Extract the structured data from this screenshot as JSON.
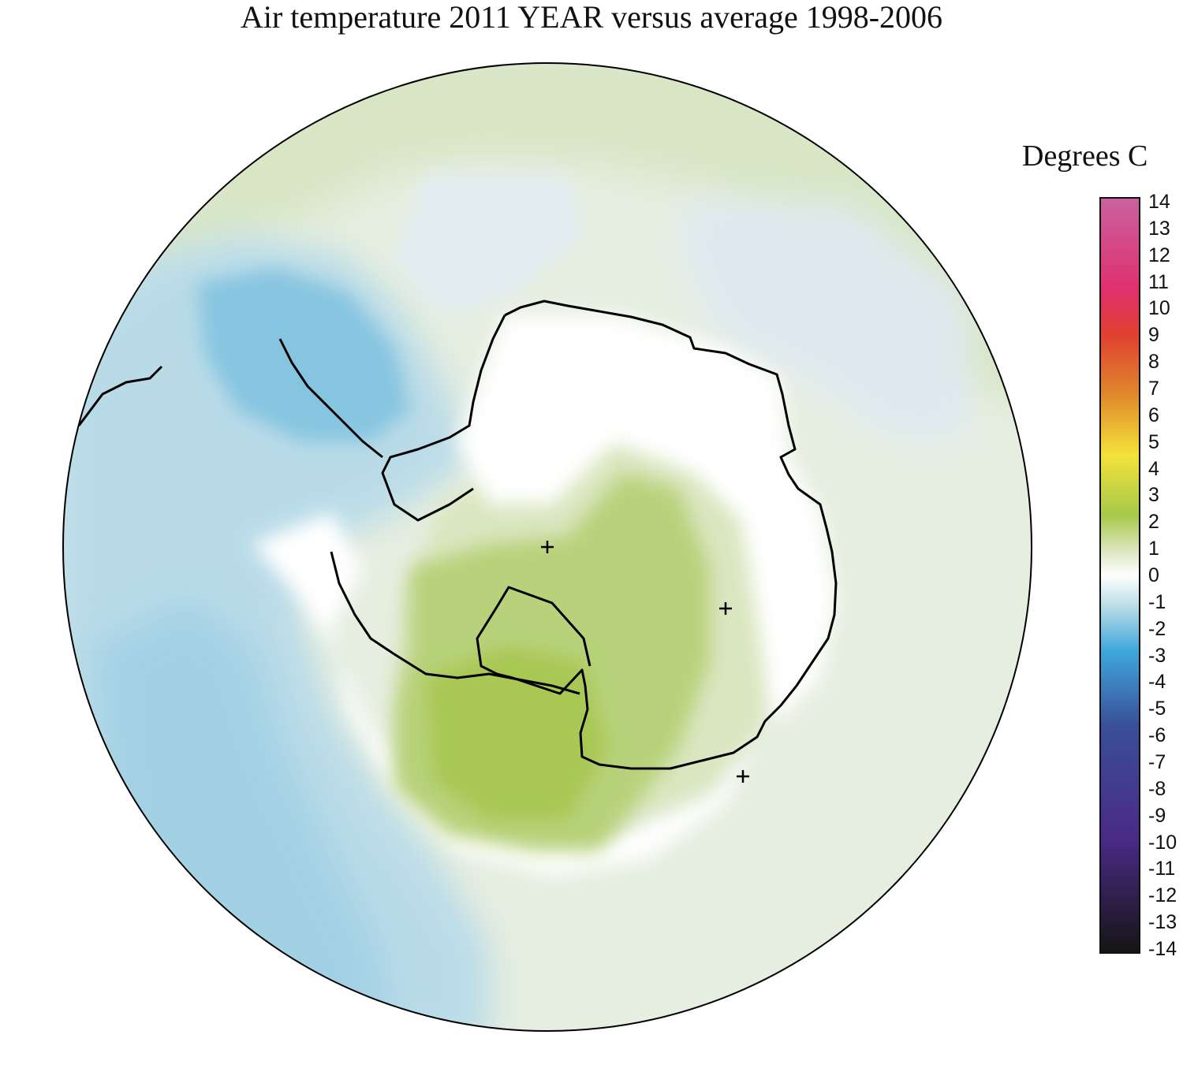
{
  "title": "Air temperature 2011 YEAR versus average 1998-2006",
  "legend": {
    "title": "Degrees C",
    "ticks": [
      "14",
      "13",
      "12",
      "11",
      "10",
      "9",
      "8",
      "7",
      "6",
      "5",
      "4",
      "3",
      "2",
      "1",
      "0",
      "-1",
      "-2",
      "-3",
      "-4",
      "-5",
      "-6",
      "-7",
      "-8",
      "-9",
      "-10",
      "-11",
      "-12",
      "-13",
      "-14"
    ],
    "range": [
      -14,
      14
    ],
    "colors": {
      "top": "#c9629f",
      "14_to_10": "#e0306e",
      "10_to_8": "#e04030",
      "8_to_6": "#e0882c",
      "6_to_4": "#f4e23a",
      "4_to_2": "#a7c94a",
      "2_to_0": "#dfe8c6",
      "zero": "#ffffff",
      "0_to_-2": "#bcdde6",
      "-2_to_-4": "#3fa7dd",
      "-4_to_-7": "#3a4f97",
      "-7_to_-11": "#4a2a86",
      "-11_to_-14": "#151515"
    }
  },
  "map": {
    "projection": "south polar stereographic",
    "region": "Antarctica and Southern Ocean",
    "anomaly_colors": {
      "cold_pacific_sector": "#8dcbe4",
      "cold_light": "#c9e3ec",
      "neutral": "#ffffff",
      "warm_light": "#eef3e0",
      "warm_mid": "#c3d99a",
      "warm_ross_sea": "#a9c95a"
    }
  }
}
